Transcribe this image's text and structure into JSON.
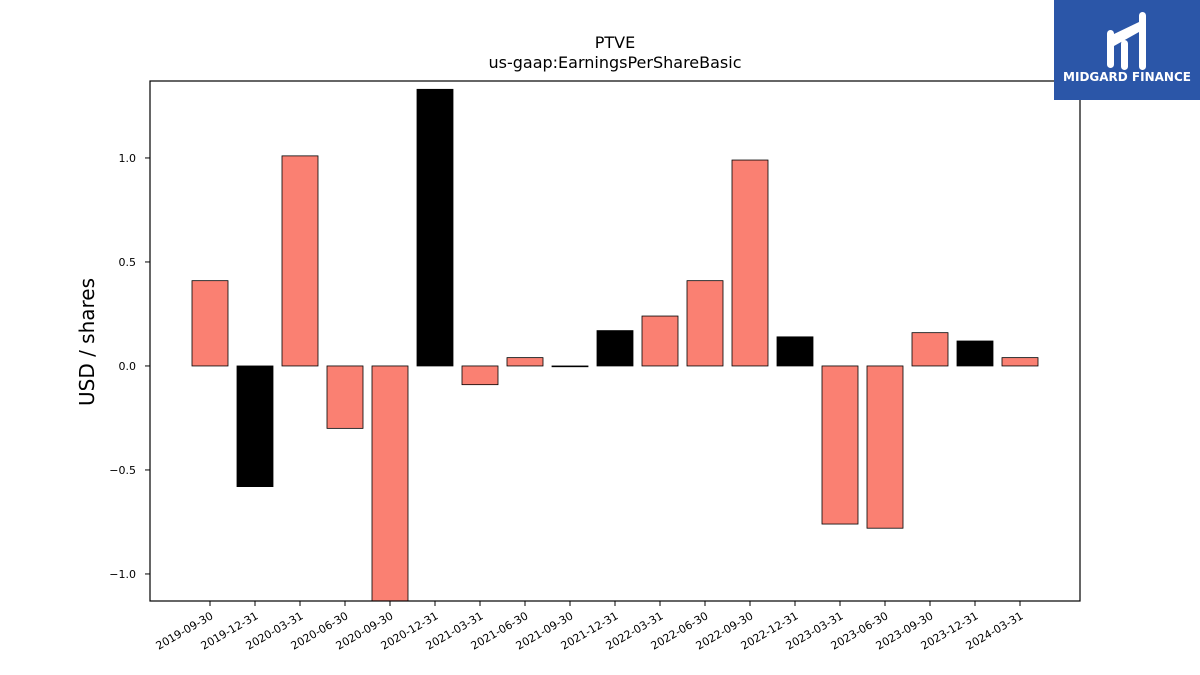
{
  "logo": {
    "text": "MIDGARD FINANCE",
    "background": "#2b56a8"
  },
  "colors": {
    "positive_bar": "#fa8072",
    "highlight_bar": "#000000",
    "axis": "#000000"
  },
  "chart_data": {
    "type": "bar",
    "title": "PTVE",
    "subtitle": "us-gaap:EarningsPerShareBasic",
    "xlabel": "",
    "ylabel": "USD / shares",
    "ylim": [
      -1.13,
      1.37
    ],
    "yticks": [
      -1.0,
      -0.5,
      0.0,
      0.5,
      1.0
    ],
    "ytick_labels": [
      "−1.0",
      "−0.5",
      "0.0",
      "0.5",
      "1.0"
    ],
    "grid": false,
    "categories": [
      "2019-09-30",
      "2019-12-31",
      "2020-03-31",
      "2020-06-30",
      "2020-09-30",
      "2020-12-31",
      "2021-03-31",
      "2021-06-30",
      "2021-09-30",
      "2021-12-31",
      "2022-03-31",
      "2022-06-30",
      "2022-09-30",
      "2022-12-31",
      "2023-03-31",
      "2023-06-30",
      "2023-09-30",
      "2023-12-31",
      "2024-03-31"
    ],
    "values": [
      0.41,
      -0.58,
      1.01,
      -0.3,
      -1.14,
      1.33,
      -0.09,
      0.04,
      0.0,
      0.17,
      0.24,
      0.41,
      0.99,
      0.14,
      -0.76,
      -0.78,
      0.16,
      0.12,
      0.04
    ],
    "bar_colors": [
      "#fa8072",
      "#000000",
      "#fa8072",
      "#fa8072",
      "#fa8072",
      "#000000",
      "#fa8072",
      "#fa8072",
      "#fa8072",
      "#000000",
      "#fa8072",
      "#fa8072",
      "#fa8072",
      "#000000",
      "#fa8072",
      "#fa8072",
      "#fa8072",
      "#000000",
      "#fa8072"
    ]
  }
}
